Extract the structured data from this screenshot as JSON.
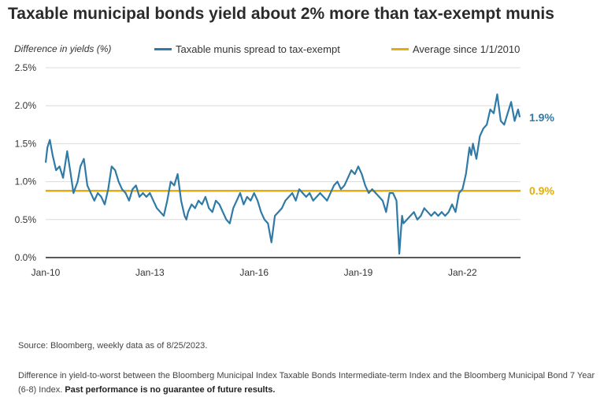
{
  "title": "Taxable municipal bonds yield about 2% more than tax-exempt munis",
  "footer": {
    "source": "Source: Bloomberg, weekly data as of 8/25/2023.",
    "note": "Difference in yield-to-worst between the Bloomberg Municipal Index Taxable Bonds Intermediate-term Index and the Bloomberg Municipal Bond 7 Year (6-8) Index.",
    "disclaimer": "Past performance is no guarantee of future results."
  },
  "chart_data": {
    "type": "line",
    "ylabel": "Difference in yields  (%)",
    "xlabel": "",
    "ylim": [
      0,
      2.5
    ],
    "xlim": [
      2010.0,
      2023.67
    ],
    "yticks": [
      0,
      0.5,
      1.0,
      1.5,
      2.0,
      2.5
    ],
    "ytick_labels": [
      "0.0%",
      "0.5%",
      "1.0%",
      "1.5%",
      "2.0%",
      "2.5%"
    ],
    "xticks": [
      2010,
      2013,
      2016,
      2019,
      2022
    ],
    "xtick_labels": [
      "Jan-10",
      "Jan-13",
      "Jan-16",
      "Jan-19",
      "Jan-22"
    ],
    "grid": "horizontal",
    "legend_position": "top",
    "series": [
      {
        "name": "Taxable munis spread to tax-exempt",
        "color": "#2f7aa6",
        "end_label": "1.9%",
        "x": [
          2010.0,
          2010.05,
          2010.12,
          2010.2,
          2010.3,
          2010.4,
          2010.5,
          2010.62,
          2010.72,
          2010.8,
          2010.92,
          2011.0,
          2011.1,
          2011.2,
          2011.3,
          2011.4,
          2011.5,
          2011.6,
          2011.7,
          2011.8,
          2011.9,
          2012.0,
          2012.1,
          2012.2,
          2012.3,
          2012.4,
          2012.5,
          2012.6,
          2012.7,
          2012.8,
          2012.9,
          2013.0,
          2013.1,
          2013.2,
          2013.3,
          2013.4,
          2013.5,
          2013.6,
          2013.7,
          2013.8,
          2013.9,
          2014.0,
          2014.05,
          2014.1,
          2014.2,
          2014.3,
          2014.4,
          2014.5,
          2014.6,
          2014.7,
          2014.8,
          2014.9,
          2015.0,
          2015.1,
          2015.2,
          2015.3,
          2015.4,
          2015.5,
          2015.6,
          2015.7,
          2015.8,
          2015.9,
          2016.0,
          2016.1,
          2016.2,
          2016.3,
          2016.4,
          2016.5,
          2016.6,
          2016.7,
          2016.8,
          2016.9,
          2017.0,
          2017.1,
          2017.2,
          2017.3,
          2017.4,
          2017.5,
          2017.6,
          2017.7,
          2017.8,
          2017.9,
          2018.0,
          2018.1,
          2018.2,
          2018.3,
          2018.4,
          2018.5,
          2018.6,
          2018.7,
          2018.8,
          2018.9,
          2019.0,
          2019.1,
          2019.2,
          2019.3,
          2019.4,
          2019.5,
          2019.6,
          2019.7,
          2019.8,
          2019.9,
          2020.0,
          2020.1,
          2020.18,
          2020.22,
          2020.26,
          2020.3,
          2020.4,
          2020.5,
          2020.6,
          2020.7,
          2020.8,
          2020.9,
          2021.0,
          2021.1,
          2021.2,
          2021.3,
          2021.4,
          2021.5,
          2021.6,
          2021.7,
          2021.8,
          2021.9,
          2022.0,
          2022.1,
          2022.2,
          2022.25,
          2022.3,
          2022.4,
          2022.5,
          2022.6,
          2022.7,
          2022.8,
          2022.9,
          2023.0,
          2023.1,
          2023.2,
          2023.3,
          2023.4,
          2023.5,
          2023.6,
          2023.65
        ],
        "values": [
          1.25,
          1.45,
          1.55,
          1.35,
          1.15,
          1.2,
          1.05,
          1.4,
          1.1,
          0.85,
          1.0,
          1.2,
          1.3,
          0.95,
          0.85,
          0.75,
          0.85,
          0.8,
          0.7,
          0.9,
          1.2,
          1.15,
          1.0,
          0.9,
          0.85,
          0.75,
          0.9,
          0.95,
          0.8,
          0.85,
          0.8,
          0.85,
          0.75,
          0.65,
          0.6,
          0.55,
          0.75,
          1.0,
          0.95,
          1.1,
          0.75,
          0.55,
          0.5,
          0.6,
          0.7,
          0.65,
          0.75,
          0.7,
          0.8,
          0.65,
          0.6,
          0.75,
          0.7,
          0.6,
          0.5,
          0.45,
          0.65,
          0.75,
          0.85,
          0.7,
          0.8,
          0.75,
          0.85,
          0.75,
          0.6,
          0.5,
          0.45,
          0.2,
          0.55,
          0.6,
          0.65,
          0.75,
          0.8,
          0.85,
          0.75,
          0.9,
          0.85,
          0.8,
          0.85,
          0.75,
          0.8,
          0.85,
          0.8,
          0.75,
          0.85,
          0.95,
          1.0,
          0.9,
          0.95,
          1.05,
          1.15,
          1.1,
          1.2,
          1.1,
          0.95,
          0.85,
          0.9,
          0.85,
          0.8,
          0.75,
          0.6,
          0.85,
          0.85,
          0.75,
          0.05,
          0.3,
          0.55,
          0.45,
          0.5,
          0.55,
          0.6,
          0.5,
          0.55,
          0.65,
          0.6,
          0.55,
          0.6,
          0.55,
          0.6,
          0.55,
          0.6,
          0.7,
          0.6,
          0.85,
          0.9,
          1.1,
          1.45,
          1.35,
          1.5,
          1.3,
          1.6,
          1.7,
          1.75,
          1.95,
          1.9,
          2.15,
          1.8,
          1.75,
          1.9,
          2.05,
          1.8,
          1.95,
          1.85
        ]
      },
      {
        "name": "Average since 1/1/2010",
        "color": "#e3ad0a",
        "end_label": "0.9%",
        "x": [
          2010.0,
          2023.67
        ],
        "values": [
          0.88,
          0.88
        ]
      }
    ]
  }
}
